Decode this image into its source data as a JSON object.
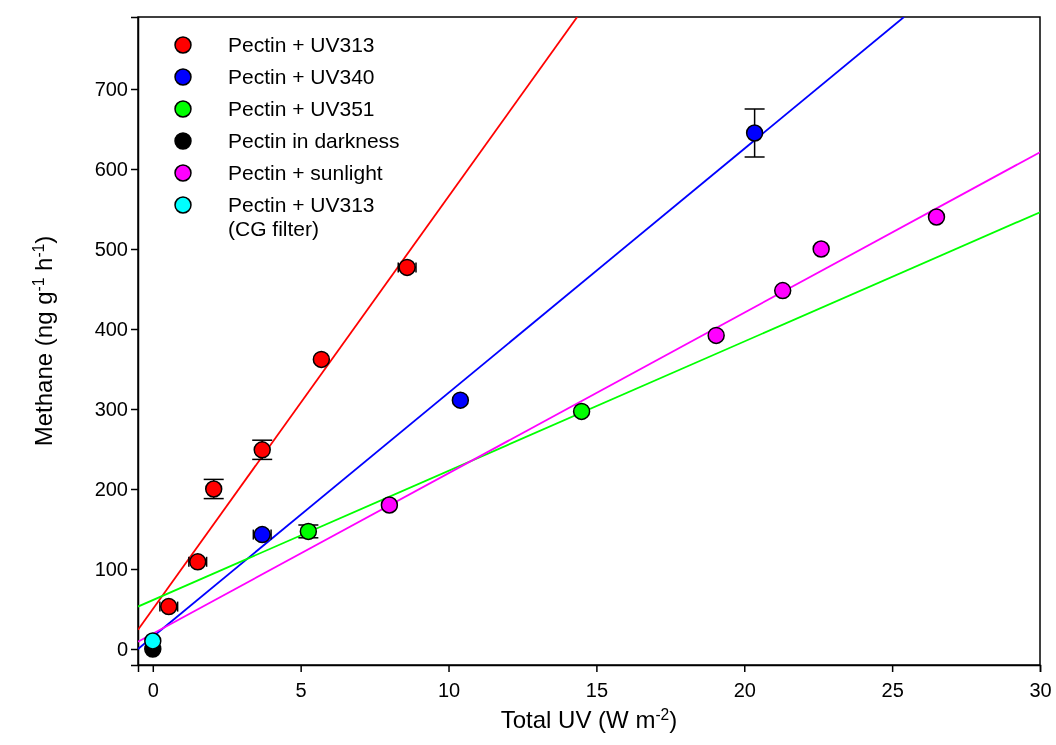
{
  "chart_data": {
    "type": "scatter",
    "xlabel": "Total UV (W m$^{-2}$)",
    "ylabel": "Methane (ng g$^{-1}$ h$^{-1}$)",
    "xlim": [
      -0.5,
      30
    ],
    "ylim": [
      -20,
      790
    ],
    "xticks": [
      0,
      5,
      10,
      15,
      20,
      25,
      30
    ],
    "yticks": [
      0,
      100,
      200,
      300,
      400,
      500,
      600,
      700
    ],
    "legend": "top left",
    "marker": "circle",
    "grid": false,
    "series": [
      {
        "type": "line",
        "marker": "none",
        "color": "#ff0000",
        "x": [
          -0.5,
          14.35
        ],
        "values": [
          24,
          790
        ]
      },
      {
        "type": "line",
        "marker": "none",
        "color": "#0000ff",
        "x": [
          -0.5,
          25.4
        ],
        "values": [
          0,
          790
        ]
      },
      {
        "type": "line",
        "marker": "none",
        "color": "#00ff00",
        "x": [
          -0.5,
          30
        ],
        "values": [
          53,
          546
        ]
      },
      {
        "type": "line",
        "marker": "none",
        "color": "#ff00ff",
        "x": [
          -0.5,
          30
        ],
        "values": [
          9,
          621
        ]
      },
      {
        "name": "Pectin + UV313",
        "color": "#ff0000",
        "x": [
          0.54,
          1.52,
          2.06,
          3.7,
          5.7,
          8.6
        ],
        "values": [
          53,
          109,
          200,
          249,
          362,
          477
        ],
        "errors": [
          null,
          null,
          12,
          12,
          null,
          null
        ],
        "xerrors": [
          0.3,
          0.3,
          null,
          null,
          null,
          0.3
        ]
      },
      {
        "name": "Pectin + UV340",
        "color": "#0000ff",
        "x": [
          3.7,
          10.4,
          20.35
        ],
        "values": [
          143,
          311,
          645
        ],
        "errors": [
          null,
          null,
          30
        ],
        "xerrors": [
          0.3,
          null,
          null
        ]
      },
      {
        "name": "Pectin + UV351",
        "color": "#00ff00",
        "x": [
          5.26,
          14.5
        ],
        "values": [
          147,
          297
        ],
        "errors": [
          8,
          null
        ]
      },
      {
        "name": "Pectin in darkness",
        "color": "#000000",
        "x": [
          0
        ],
        "values": [
          0
        ]
      },
      {
        "name": "Pectin + sunlight",
        "color": "#ff00ff",
        "x": [
          8.0,
          19.05,
          21.3,
          22.6,
          26.5
        ],
        "values": [
          180,
          392,
          448,
          500,
          540
        ]
      },
      {
        "name": "Pectin + UV313\n(CG filter)",
        "color": "#00ffff",
        "x": [
          0
        ],
        "values": [
          10
        ]
      }
    ]
  }
}
